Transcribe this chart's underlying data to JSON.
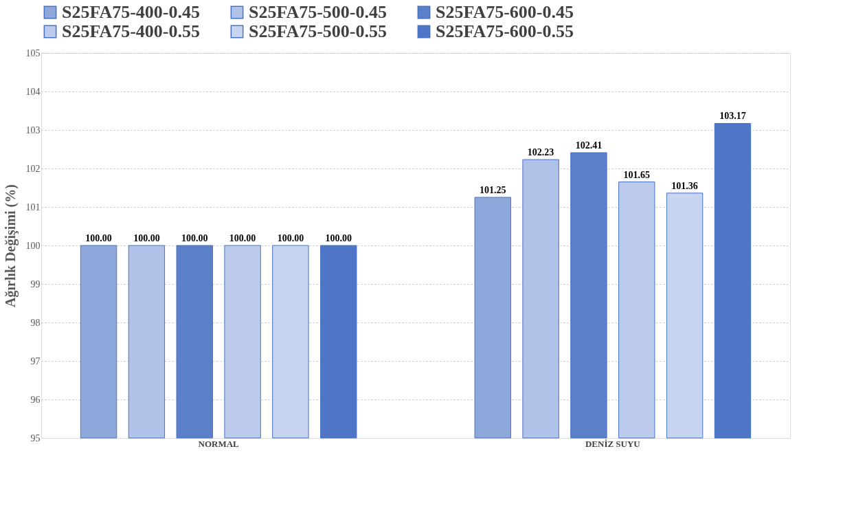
{
  "chart_data": {
    "type": "bar",
    "ylabel": "Ağırlık Değişimi (%)",
    "categories": [
      "NORMAL",
      "DENİZ SUYU"
    ],
    "series": [
      {
        "name": "S25FA75-400-0.45",
        "color": "#8fa8dc",
        "values": [
          100.0,
          101.25
        ],
        "value_labels": [
          "100.00",
          "101.25"
        ]
      },
      {
        "name": "S25FA75-500-0.45",
        "color": "#b0c2e8",
        "values": [
          100.0,
          102.23
        ],
        "value_labels": [
          "100.00",
          "102.23"
        ]
      },
      {
        "name": "S25FA75-600-0.45",
        "color": "#5b7fc8",
        "values": [
          100.0,
          102.41
        ],
        "value_labels": [
          "100.00",
          "102.41"
        ]
      },
      {
        "name": "S25FA75-400-0.55",
        "color": "#bccbec",
        "values": [
          100.0,
          101.65
        ],
        "value_labels": [
          "100.00",
          "101.65"
        ]
      },
      {
        "name": "S25FA75-500-0.55",
        "color": "#c8d5f0",
        "values": [
          100.0,
          101.36
        ],
        "value_labels": [
          "100.00",
          "101.36"
        ]
      },
      {
        "name": "S25FA75-600-0.55",
        "color": "#4f76c6",
        "values": [
          100.0,
          103.17
        ],
        "value_labels": [
          "100.00",
          "103.17"
        ]
      }
    ],
    "ylim": [
      95,
      105
    ],
    "yticks": [
      95,
      96,
      97,
      98,
      99,
      100,
      101,
      102,
      103,
      104,
      105
    ],
    "grid": "y",
    "legend": "top"
  }
}
